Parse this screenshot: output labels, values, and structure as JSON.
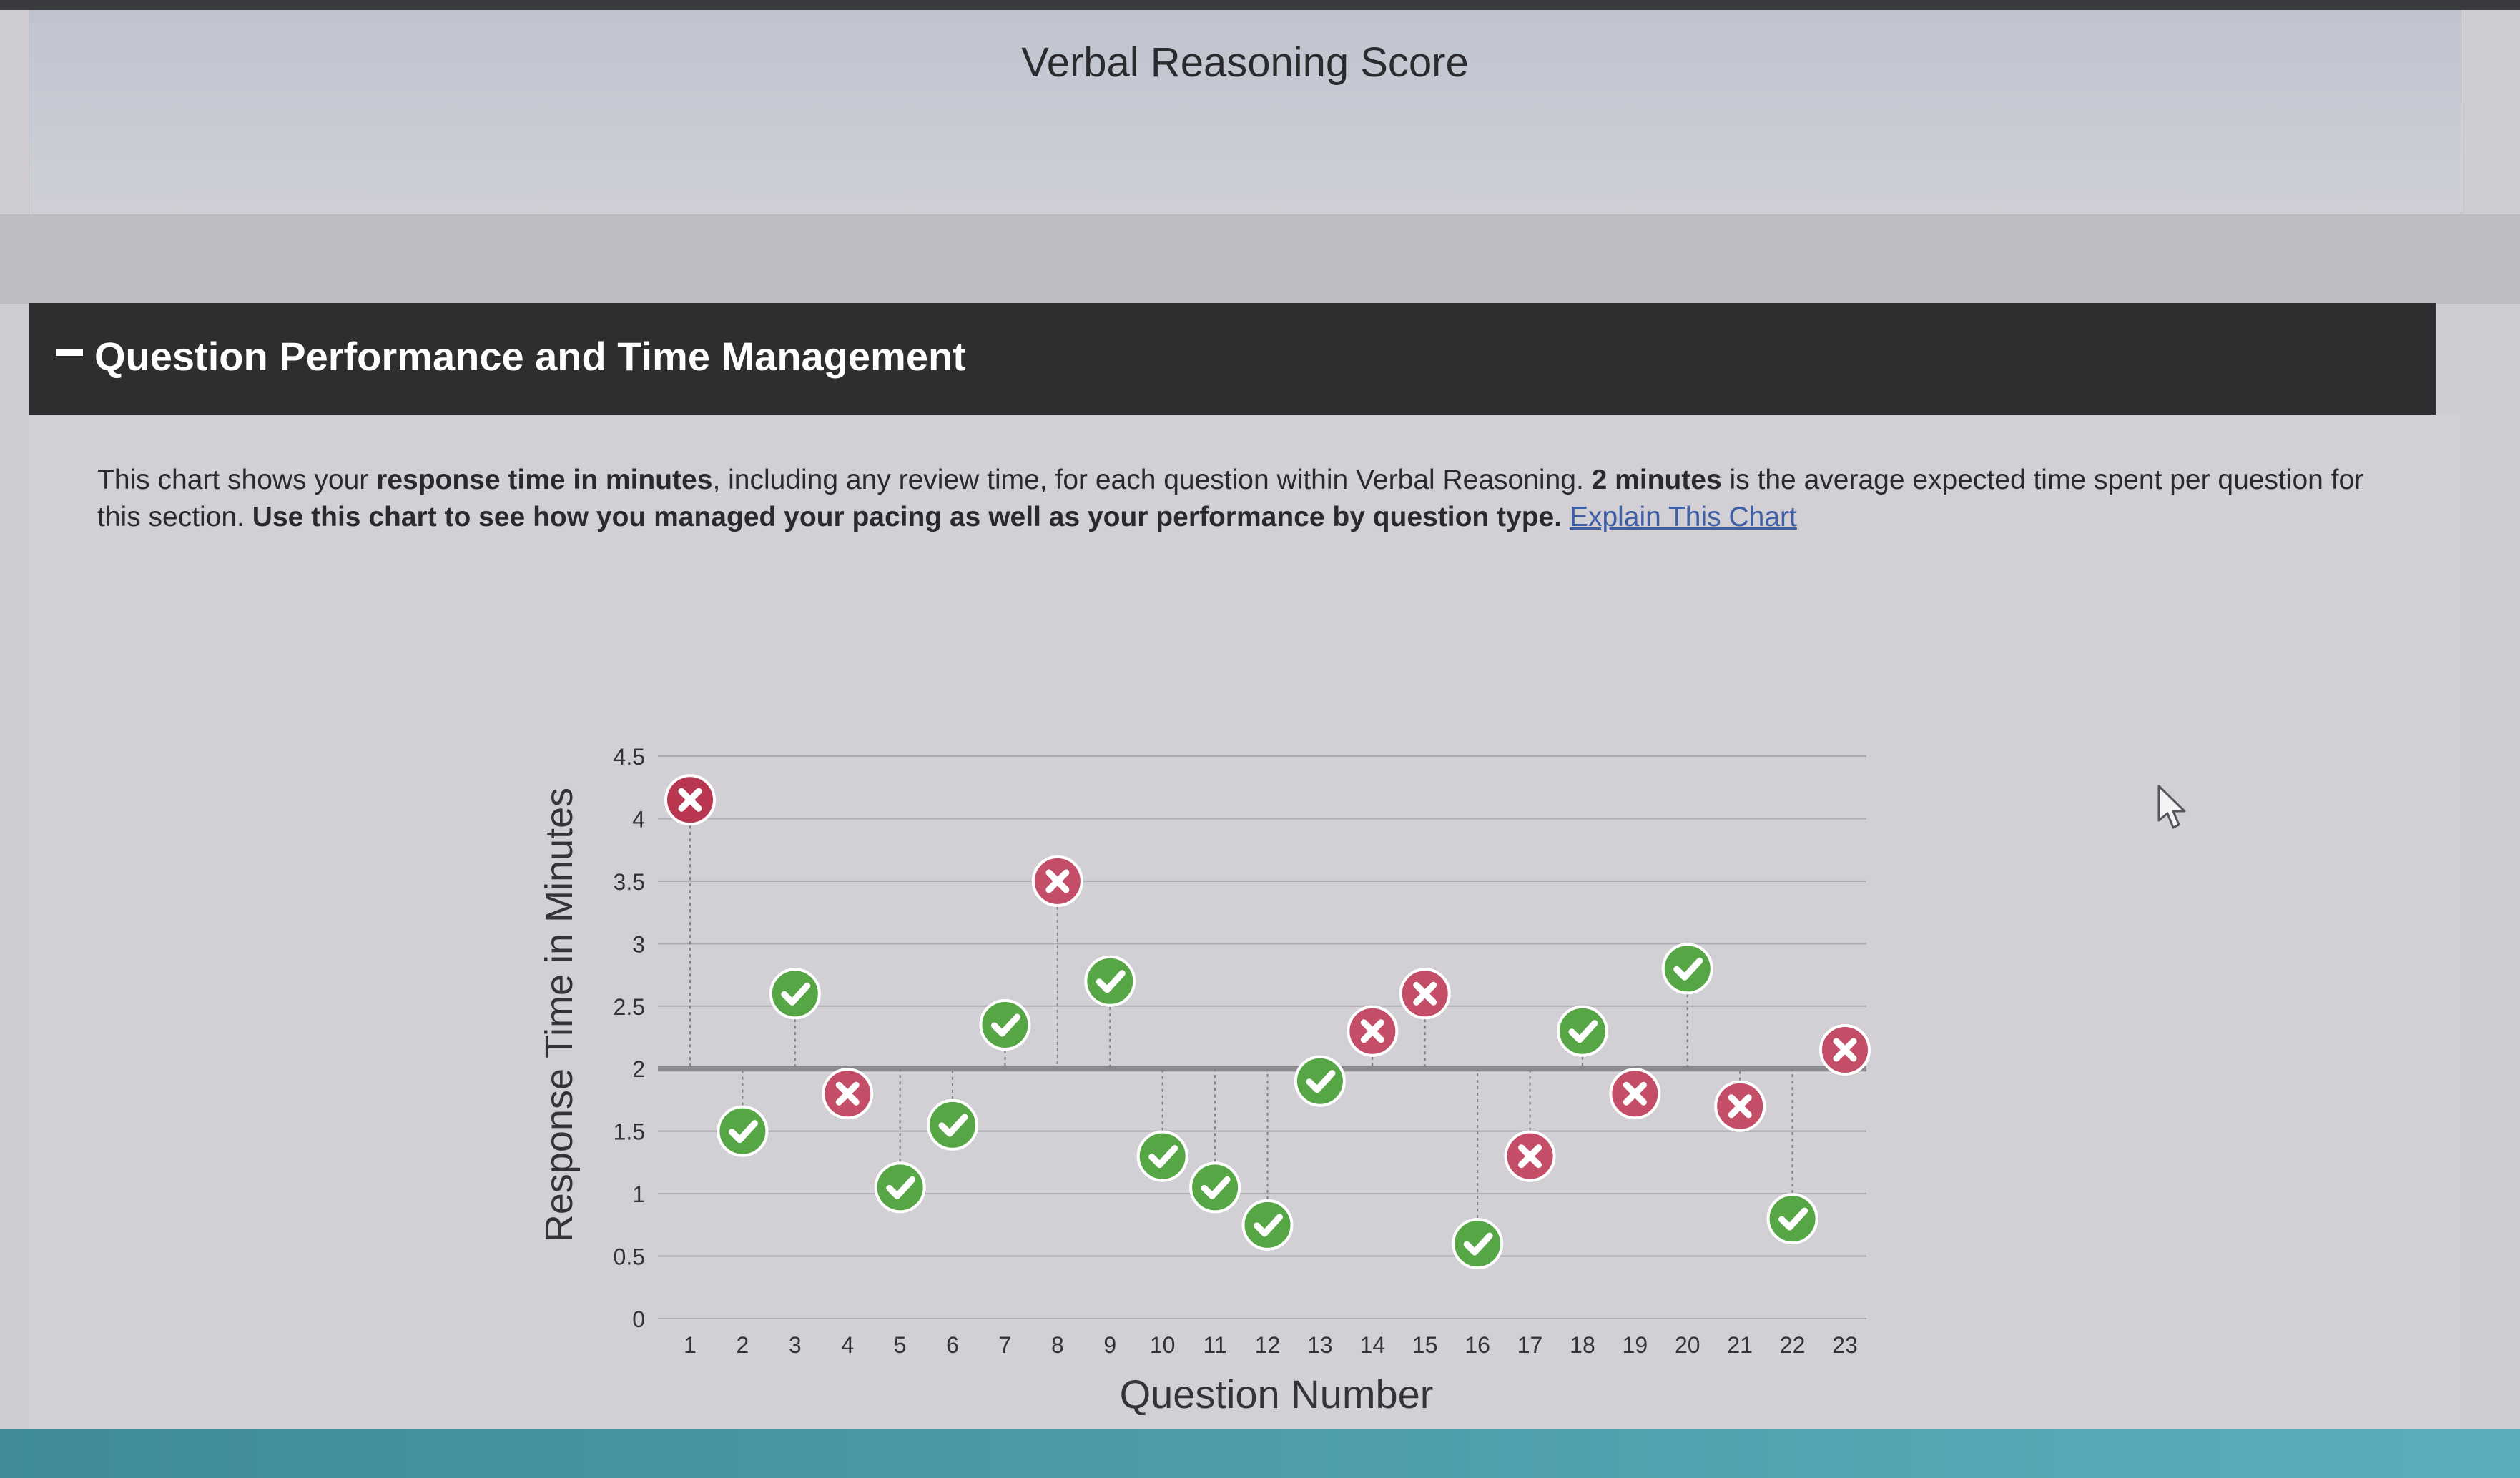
{
  "page": {
    "title": "Verbal Reasoning Score"
  },
  "section": {
    "title": "Question Performance and Time Management",
    "collapse_symbol": "−"
  },
  "description": {
    "t1": "This chart shows your ",
    "b1": "response time in minutes",
    "t2": ", including any review time, for each question within Verbal Reasoning. ",
    "b2": "2 minutes",
    "t3": " is the average expected time spent per question for this section. ",
    "b3": "Use this chart to see how you managed your pacing as well as your performance by question type.",
    "t4": " ",
    "link": "Explain This Chart"
  },
  "colors": {
    "correct": "#56a646",
    "incorrect": "#c44d68",
    "incorrect_first": "#b8364f",
    "average_line": "#8a8a8f",
    "grid": "#a9a9ae",
    "header_bg": "#2e2e31"
  },
  "chart_data": {
    "type": "scatter",
    "xlabel": "Question Number",
    "ylabel": "Response Time in Minutes",
    "ylim": [
      0,
      4.5
    ],
    "yticks": [
      0,
      0.5,
      1,
      1.5,
      2,
      2.5,
      3,
      3.5,
      4,
      4.5
    ],
    "ytick_labels": [
      "0",
      "0.5",
      "1",
      "1.5",
      "2",
      "2.5",
      "3",
      "3.5",
      "4",
      "4.5"
    ],
    "average_expected_time": 2,
    "x_labels": [
      "1",
      "2",
      "3",
      "4",
      "5",
      "6",
      "7",
      "8",
      "9",
      "10",
      "11",
      "12",
      "13",
      "14",
      "15",
      "16",
      "17",
      "18",
      "19",
      "20",
      "21",
      "22",
      "23"
    ],
    "points": [
      {
        "q": 1,
        "time": 4.15,
        "result": "incorrect"
      },
      {
        "q": 2,
        "time": 1.5,
        "result": "correct"
      },
      {
        "q": 3,
        "time": 2.6,
        "result": "correct"
      },
      {
        "q": 4,
        "time": 1.8,
        "result": "incorrect"
      },
      {
        "q": 5,
        "time": 1.05,
        "result": "correct"
      },
      {
        "q": 6,
        "time": 1.55,
        "result": "correct"
      },
      {
        "q": 7,
        "time": 2.35,
        "result": "correct"
      },
      {
        "q": 8,
        "time": 3.5,
        "result": "incorrect"
      },
      {
        "q": 9,
        "time": 2.7,
        "result": "correct"
      },
      {
        "q": 10,
        "time": 1.3,
        "result": "correct"
      },
      {
        "q": 11,
        "time": 1.05,
        "result": "correct"
      },
      {
        "q": 12,
        "time": 0.75,
        "result": "correct"
      },
      {
        "q": 13,
        "time": 1.9,
        "result": "correct"
      },
      {
        "q": 14,
        "time": 2.3,
        "result": "incorrect"
      },
      {
        "q": 15,
        "time": 2.6,
        "result": "incorrect"
      },
      {
        "q": 16,
        "time": 0.6,
        "result": "correct"
      },
      {
        "q": 17,
        "time": 1.3,
        "result": "incorrect"
      },
      {
        "q": 18,
        "time": 2.3,
        "result": "correct"
      },
      {
        "q": 19,
        "time": 1.8,
        "result": "incorrect"
      },
      {
        "q": 20,
        "time": 2.8,
        "result": "correct"
      },
      {
        "q": 21,
        "time": 1.7,
        "result": "incorrect"
      },
      {
        "q": 22,
        "time": 0.8,
        "result": "correct"
      },
      {
        "q": 23,
        "time": 2.15,
        "result": "incorrect"
      }
    ]
  }
}
